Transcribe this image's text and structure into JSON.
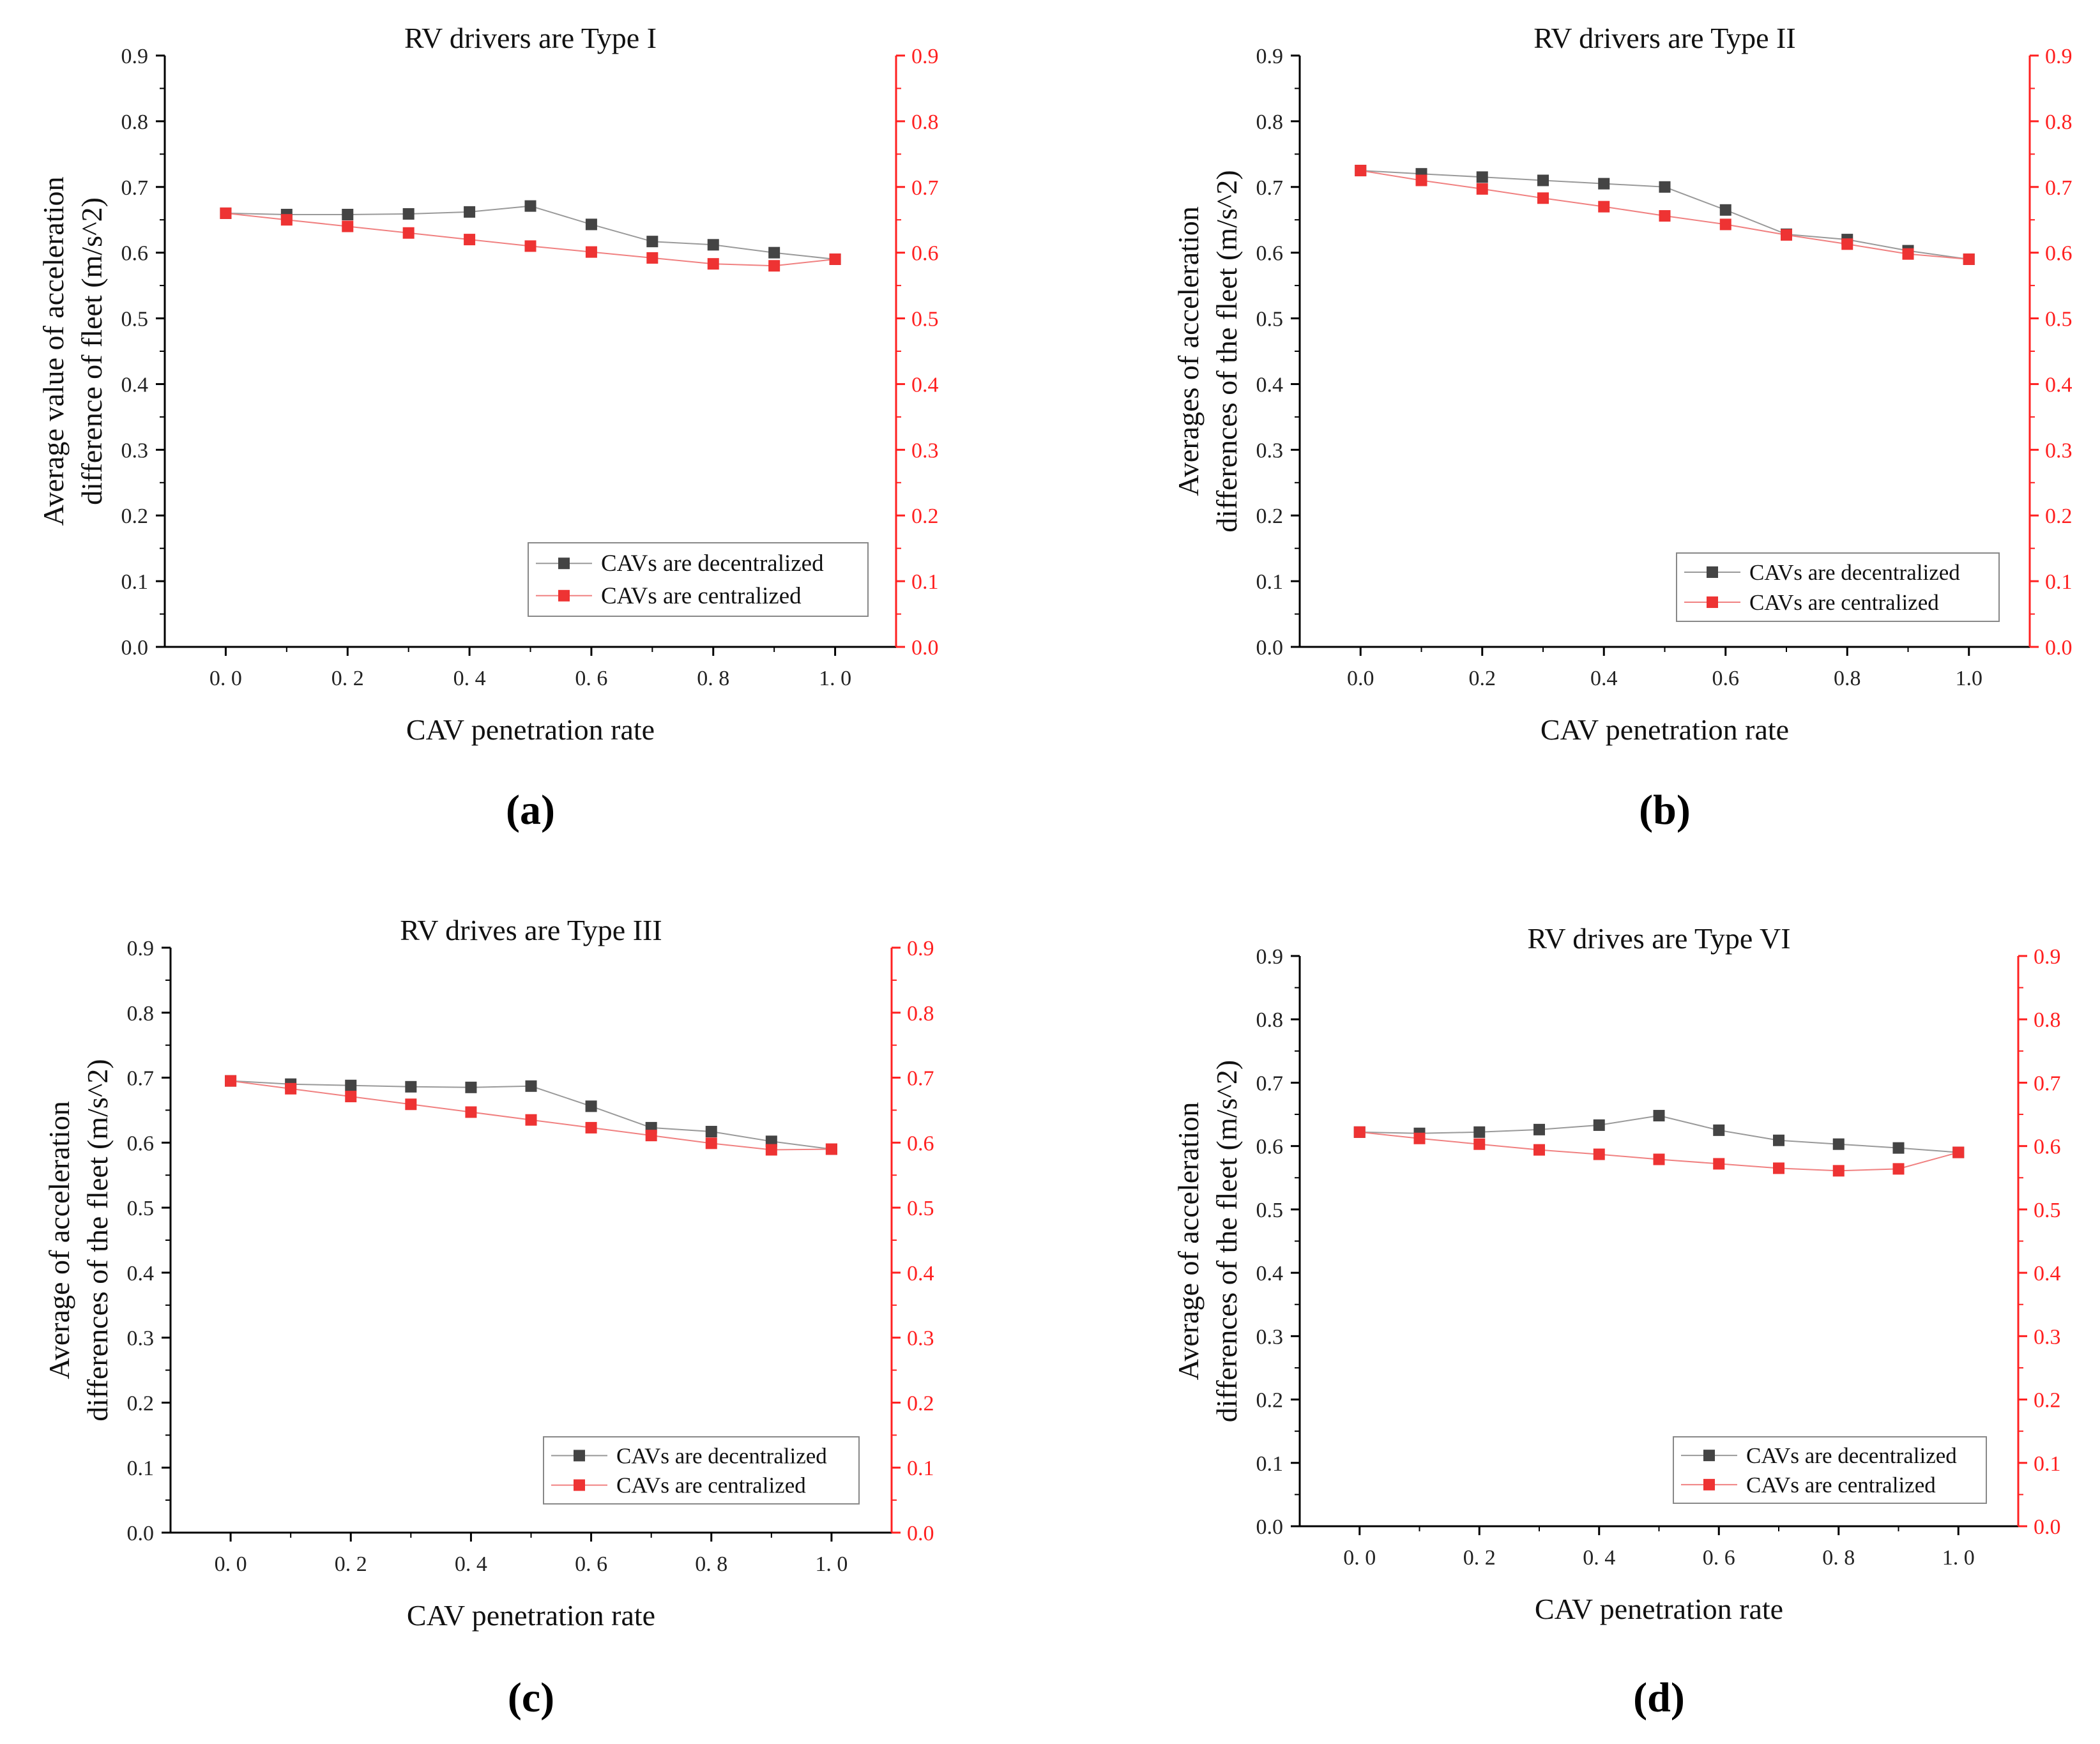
{
  "chart_data": [
    {
      "type": "line",
      "panel_label": "(a)",
      "title": "RV drivers are Type I",
      "xlabel": "CAV penetration rate",
      "ylabel_lines": [
        "Average value of acceleration",
        "difference of fleet (m/s^2)"
      ],
      "x": [
        0.0,
        0.1,
        0.2,
        0.3,
        0.4,
        0.5,
        0.6,
        0.7,
        0.8,
        0.9,
        1.0
      ],
      "x_ticks": [
        0.0,
        0.2,
        0.4,
        0.6,
        0.8,
        1.0
      ],
      "x_tick_labels": [
        "0. 0",
        "0. 2",
        "0. 4",
        "0. 6",
        "0. 8",
        "1. 0"
      ],
      "xlim": [
        -0.1,
        1.1
      ],
      "ylim": [
        0,
        0.9
      ],
      "y_ticks": [
        0.0,
        0.1,
        0.2,
        0.3,
        0.4,
        0.5,
        0.6,
        0.7,
        0.8,
        0.9
      ],
      "y_tick_labels": [
        "0.0",
        "0.1",
        "0.2",
        "0.3",
        "0.4",
        "0.5",
        "0.6",
        "0.7",
        "0.8",
        "0.9"
      ],
      "right_axis_color": "#ff2020",
      "legend_position": "lower-right",
      "series": [
        {
          "name": "CAVs are decentralized",
          "color": "#444444",
          "values": [
            0.66,
            0.658,
            0.658,
            0.659,
            0.662,
            0.671,
            0.643,
            0.617,
            0.612,
            0.6,
            0.59
          ]
        },
        {
          "name": "CAVs are centralized",
          "color": "#ee3333",
          "values": [
            0.66,
            0.65,
            0.64,
            0.63,
            0.62,
            0.61,
            0.601,
            0.592,
            0.583,
            0.58,
            0.59
          ]
        }
      ]
    },
    {
      "type": "line",
      "panel_label": "(b)",
      "title": "RV drivers are Type II",
      "xlabel": "CAV penetration rate",
      "ylabel_lines": [
        "Averages of acceleration",
        "differences of the fleet (m/s^2)"
      ],
      "x": [
        0.0,
        0.1,
        0.2,
        0.3,
        0.4,
        0.5,
        0.6,
        0.7,
        0.8,
        0.9,
        1.0
      ],
      "x_ticks": [
        0.0,
        0.2,
        0.4,
        0.6,
        0.8,
        1.0
      ],
      "x_tick_labels": [
        "0.0",
        "0.2",
        "0.4",
        "0.6",
        "0.8",
        "1.0"
      ],
      "xlim": [
        -0.1,
        1.1
      ],
      "ylim": [
        0,
        0.9
      ],
      "y_ticks": [
        0.0,
        0.1,
        0.2,
        0.3,
        0.4,
        0.5,
        0.6,
        0.7,
        0.8,
        0.9
      ],
      "y_tick_labels": [
        "0.0",
        "0.1",
        "0.2",
        "0.3",
        "0.4",
        "0.5",
        "0.6",
        "0.7",
        "0.8",
        "0.9"
      ],
      "right_axis_color": "#ff2020",
      "legend_position": "lower-right",
      "series": [
        {
          "name": "CAVs are decentralized",
          "color": "#444444",
          "values": [
            0.725,
            0.72,
            0.715,
            0.71,
            0.705,
            0.7,
            0.665,
            0.628,
            0.62,
            0.603,
            0.59
          ]
        },
        {
          "name": "CAVs are centralized",
          "color": "#ee3333",
          "values": [
            0.725,
            0.71,
            0.697,
            0.683,
            0.67,
            0.656,
            0.643,
            0.627,
            0.613,
            0.598,
            0.59
          ]
        }
      ]
    },
    {
      "type": "line",
      "panel_label": "(c)",
      "title": "RV drives are Type III",
      "xlabel": "CAV penetration rate",
      "ylabel_lines": [
        "Average of acceleration",
        "differences of the fleet (m/s^2)"
      ],
      "x": [
        0.0,
        0.1,
        0.2,
        0.3,
        0.4,
        0.5,
        0.6,
        0.7,
        0.8,
        0.9,
        1.0
      ],
      "x_ticks": [
        0.0,
        0.2,
        0.4,
        0.6,
        0.8,
        1.0
      ],
      "x_tick_labels": [
        "0. 0",
        "0. 2",
        "0. 4",
        "0. 6",
        "0. 8",
        "1. 0"
      ],
      "xlim": [
        -0.1,
        1.1
      ],
      "ylim": [
        0,
        0.9
      ],
      "y_ticks": [
        0.0,
        0.1,
        0.2,
        0.3,
        0.4,
        0.5,
        0.6,
        0.7,
        0.8,
        0.9
      ],
      "y_tick_labels": [
        "0.0",
        "0.1",
        "0.2",
        "0.3",
        "0.4",
        "0.5",
        "0.6",
        "0.7",
        "0.8",
        "0.9"
      ],
      "right_axis_color": "#ff2020",
      "legend_position": "lower-right",
      "series": [
        {
          "name": "CAVs are decentralized",
          "color": "#444444",
          "values": [
            0.695,
            0.69,
            0.688,
            0.686,
            0.685,
            0.687,
            0.656,
            0.623,
            0.617,
            0.602,
            0.59
          ]
        },
        {
          "name": "CAVs are centralized",
          "color": "#ee3333",
          "values": [
            0.695,
            0.683,
            0.671,
            0.659,
            0.647,
            0.635,
            0.623,
            0.611,
            0.599,
            0.589,
            0.59
          ]
        }
      ]
    },
    {
      "type": "line",
      "panel_label": "(d)",
      "title": "RV drives are Type VI",
      "xlabel": "CAV penetration rate",
      "ylabel_lines": [
        "Average of acceleration",
        "differences of the fleet (m/s^2)"
      ],
      "x": [
        0.0,
        0.1,
        0.2,
        0.3,
        0.4,
        0.5,
        0.6,
        0.7,
        0.8,
        0.9,
        1.0
      ],
      "x_ticks": [
        0.0,
        0.2,
        0.4,
        0.6,
        0.8,
        1.0
      ],
      "x_tick_labels": [
        "0. 0",
        "0. 2",
        "0. 4",
        "0. 6",
        "0. 8",
        "1. 0"
      ],
      "xlim": [
        -0.1,
        1.1
      ],
      "ylim": [
        0,
        0.9
      ],
      "y_ticks": [
        0.0,
        0.1,
        0.2,
        0.3,
        0.4,
        0.5,
        0.6,
        0.7,
        0.8,
        0.9
      ],
      "y_tick_labels": [
        "0.0",
        "0.1",
        "0.2",
        "0.3",
        "0.4",
        "0.5",
        "0.6",
        "0.7",
        "0.8",
        "0.9"
      ],
      "right_axis_color": "#ff2020",
      "legend_position": "lower-right",
      "series": [
        {
          "name": "CAVs are decentralized",
          "color": "#444444",
          "values": [
            0.622,
            0.62,
            0.622,
            0.626,
            0.633,
            0.648,
            0.625,
            0.609,
            0.603,
            0.597,
            0.59
          ]
        },
        {
          "name": "CAVs are centralized",
          "color": "#ee3333",
          "values": [
            0.622,
            0.612,
            0.603,
            0.594,
            0.587,
            0.579,
            0.572,
            0.565,
            0.561,
            0.564,
            0.59
          ]
        }
      ]
    }
  ]
}
